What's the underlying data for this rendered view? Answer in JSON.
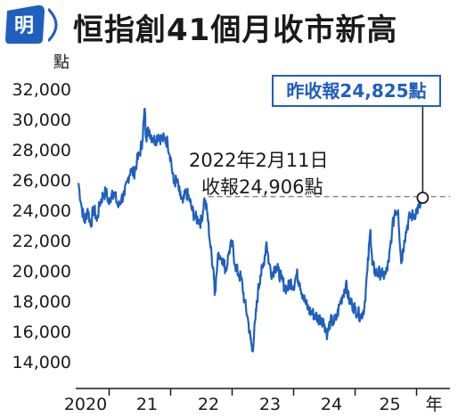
{
  "header": {
    "logo_char": "明",
    "title": "恒指創41個月收市新高"
  },
  "colors": {
    "line": "#1f5fbf",
    "callout_border": "#1f5fbf",
    "dashed": "#8a8a8a",
    "logo_blue": "#1f5fbf"
  },
  "chart_data": {
    "type": "line",
    "ylabel": "點",
    "xlabel": "年",
    "ylim": [
      13000,
      33000
    ],
    "y_ticks": [
      14000,
      16000,
      18000,
      20000,
      22000,
      24000,
      26000,
      28000,
      30000,
      32000
    ],
    "y_tick_labels": [
      "14,000",
      "16,000",
      "18,000",
      "20,000",
      "22,000",
      "24,000",
      "26,000",
      "28,000",
      "30,000",
      "32,000"
    ],
    "x_tick_labels": [
      "2020",
      "21",
      "22",
      "23",
      "24",
      "25"
    ],
    "x_axis_unit_label": "年",
    "series": [
      {
        "values": [
          [
            2020.0,
            25800
          ],
          [
            2020.05,
            24300
          ],
          [
            2020.1,
            23200
          ],
          [
            2020.15,
            24100
          ],
          [
            2020.2,
            23000
          ],
          [
            2020.25,
            24200
          ],
          [
            2020.3,
            23300
          ],
          [
            2020.35,
            24500
          ],
          [
            2020.4,
            25000
          ],
          [
            2020.45,
            25200
          ],
          [
            2020.5,
            24400
          ],
          [
            2020.55,
            25300
          ],
          [
            2020.6,
            24900
          ],
          [
            2020.65,
            24200
          ],
          [
            2020.7,
            24800
          ],
          [
            2020.75,
            25000
          ],
          [
            2020.8,
            26000
          ],
          [
            2020.85,
            26700
          ],
          [
            2020.9,
            26400
          ],
          [
            2020.95,
            27200
          ],
          [
            2021.0,
            27800
          ],
          [
            2021.04,
            28600
          ],
          [
            2021.08,
            30700
          ],
          [
            2021.1,
            28900
          ],
          [
            2021.15,
            29300
          ],
          [
            2021.2,
            28800
          ],
          [
            2021.25,
            28600
          ],
          [
            2021.3,
            29000
          ],
          [
            2021.35,
            28700
          ],
          [
            2021.4,
            28700
          ],
          [
            2021.45,
            28500
          ],
          [
            2021.5,
            27500
          ],
          [
            2021.55,
            25800
          ],
          [
            2021.6,
            26000
          ],
          [
            2021.65,
            25000
          ],
          [
            2021.7,
            24500
          ],
          [
            2021.75,
            25200
          ],
          [
            2021.8,
            24800
          ],
          [
            2021.85,
            24000
          ],
          [
            2021.9,
            23500
          ],
          [
            2021.95,
            23400
          ],
          [
            2022.0,
            23200
          ],
          [
            2022.05,
            24800
          ],
          [
            2022.1,
            23700
          ],
          [
            2022.15,
            21500
          ],
          [
            2022.2,
            20000
          ],
          [
            2022.22,
            18600
          ],
          [
            2022.28,
            21200
          ],
          [
            2022.35,
            20800
          ],
          [
            2022.4,
            20000
          ],
          [
            2022.45,
            21300
          ],
          [
            2022.5,
            21800
          ],
          [
            2022.55,
            20400
          ],
          [
            2022.6,
            19800
          ],
          [
            2022.65,
            19500
          ],
          [
            2022.7,
            18000
          ],
          [
            2022.75,
            17000
          ],
          [
            2022.8,
            15500
          ],
          [
            2022.83,
            14700
          ],
          [
            2022.88,
            16800
          ],
          [
            2022.92,
            18600
          ],
          [
            2022.96,
            19700
          ],
          [
            2023.0,
            20200
          ],
          [
            2023.06,
            21900
          ],
          [
            2023.1,
            20500
          ],
          [
            2023.15,
            19800
          ],
          [
            2023.2,
            20300
          ],
          [
            2023.25,
            20000
          ],
          [
            2023.3,
            19500
          ],
          [
            2023.35,
            19000
          ],
          [
            2023.4,
            18800
          ],
          [
            2023.45,
            19300
          ],
          [
            2023.5,
            19000
          ],
          [
            2023.55,
            19800
          ],
          [
            2023.6,
            19200
          ],
          [
            2023.65,
            18400
          ],
          [
            2023.7,
            17800
          ],
          [
            2023.75,
            17400
          ],
          [
            2023.8,
            17200
          ],
          [
            2023.85,
            17100
          ],
          [
            2023.9,
            16800
          ],
          [
            2023.95,
            16900
          ],
          [
            2024.0,
            16500
          ],
          [
            2024.05,
            15800
          ],
          [
            2024.1,
            16700
          ],
          [
            2024.15,
            16600
          ],
          [
            2024.2,
            16900
          ],
          [
            2024.25,
            17800
          ],
          [
            2024.3,
            18400
          ],
          [
            2024.35,
            19100
          ],
          [
            2024.4,
            18100
          ],
          [
            2024.45,
            17800
          ],
          [
            2024.5,
            17500
          ],
          [
            2024.55,
            17200
          ],
          [
            2024.6,
            17000
          ],
          [
            2024.65,
            17600
          ],
          [
            2024.7,
            20000
          ],
          [
            2024.75,
            22700
          ],
          [
            2024.78,
            20400
          ],
          [
            2024.82,
            20000
          ],
          [
            2024.86,
            19800
          ],
          [
            2024.9,
            19900
          ],
          [
            2024.95,
            19700
          ],
          [
            2025.0,
            19800
          ],
          [
            2025.05,
            20600
          ],
          [
            2025.1,
            22600
          ],
          [
            2025.15,
            24000
          ],
          [
            2025.2,
            24000
          ],
          [
            2025.25,
            20500
          ],
          [
            2025.3,
            22000
          ],
          [
            2025.35,
            23000
          ],
          [
            2025.4,
            23700
          ],
          [
            2025.45,
            23600
          ],
          [
            2025.5,
            24000
          ],
          [
            2025.55,
            24200
          ],
          [
            2025.6,
            24825
          ]
        ]
      }
    ],
    "annotations": [
      {
        "label_line1": "2022年2月11日",
        "label_line2": "收報24,906點",
        "x": 2022.11,
        "y": 24906
      },
      {
        "label": "昨收報24,825點",
        "x": 2025.6,
        "y": 24825
      }
    ],
    "grid": false
  }
}
